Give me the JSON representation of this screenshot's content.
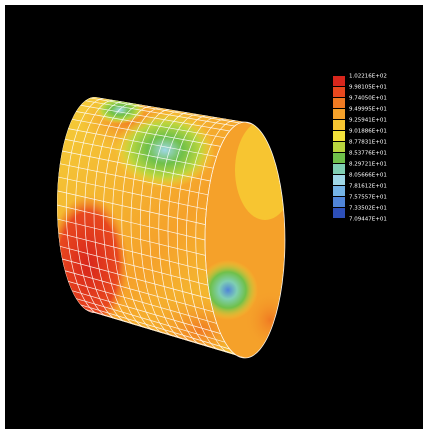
{
  "legend": {
    "labels": [
      "1.02216E+02",
      "9.98105E+01",
      "9.74050E+01",
      "9.49995E+01",
      "9.25941E+01",
      "9.01886E+01",
      "8.77831E+01",
      "8.53776E+01",
      "8.29721E+01",
      "8.05666E+01",
      "7.81612E+01",
      "7.57557E+01",
      "7.33502E+01",
      "7.09447E+01"
    ],
    "colors": [
      "#d8261c",
      "#e8481e",
      "#f07a22",
      "#f5a12a",
      "#f7c531",
      "#f3e23a",
      "#b9d53e",
      "#6fc04a",
      "#7fcfb3",
      "#9fd8e8",
      "#74b3e6",
      "#4f84d8",
      "#2d4fb8"
    ]
  }
}
